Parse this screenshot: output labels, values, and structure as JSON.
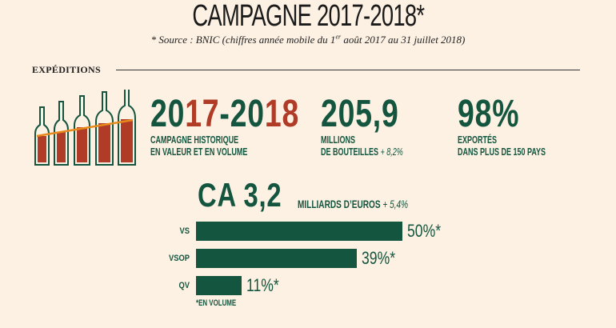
{
  "header": {
    "title": "CAMPAGNE 2017-2018*",
    "source_prefix": "* Source : BNIC (chiffres année mobile du 1",
    "source_sup": "er",
    "source_suffix": " août 2017 au 31 juillet 2018)"
  },
  "section": {
    "title": "EXPÉDITIONS"
  },
  "stats": {
    "campaign": {
      "parts": [
        "20",
        "17",
        "-20",
        "18"
      ],
      "line1": "CAMPAGNE HISTORIQUE",
      "line2": "EN VALEUR ET EN VOLUME"
    },
    "bottles": {
      "value": "205,9",
      "line1": "MILLIONS",
      "line2": "DE BOUTEILLES",
      "change": "+ 8,2%"
    },
    "export": {
      "value": "98%",
      "line1": "EXPORTÉS",
      "line2": "DANS PLUS DE 150 PAYS"
    }
  },
  "revenue": {
    "value": "CA 3,2",
    "unit": "MILLIARDS D’EUROS",
    "change": "+ 5,4%"
  },
  "colors": {
    "green": "#14553f",
    "red": "#b03c28",
    "orange": "#e8891c",
    "background": "#fdf1e3"
  },
  "chart_data": {
    "type": "bar",
    "orientation": "horizontal",
    "categories": [
      "VS",
      "VSOP",
      "QV"
    ],
    "values": [
      50,
      39,
      11
    ],
    "labels": [
      "50%*",
      "39%*",
      "11%*"
    ],
    "unit": "%",
    "footnote": "*EN VOLUME",
    "xlim": [
      0,
      50
    ]
  }
}
